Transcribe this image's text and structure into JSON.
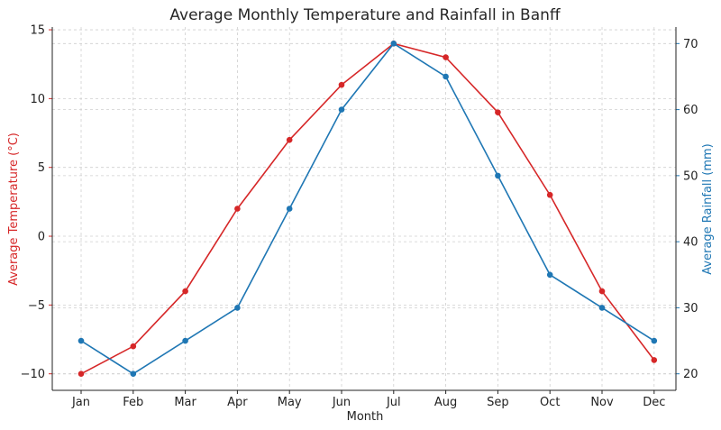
{
  "chart_data": {
    "type": "line",
    "title": "Average Monthly Temperature and Rainfall in Banff",
    "xlabel": "Month",
    "categories": [
      "Jan",
      "Feb",
      "Mar",
      "Apr",
      "May",
      "Jun",
      "Jul",
      "Aug",
      "Sep",
      "Oct",
      "Nov",
      "Dec"
    ],
    "grid": true,
    "series": [
      {
        "name": "Average Temperature (°C)",
        "axis": "left",
        "color": "#d62728",
        "values": [
          -10,
          -8,
          -4,
          2,
          7,
          11,
          14,
          13,
          9,
          3,
          -4,
          -9
        ]
      },
      {
        "name": "Average Rainfall (mm)",
        "axis": "right",
        "color": "#1f77b4",
        "values": [
          25,
          20,
          25,
          30,
          45,
          60,
          70,
          65,
          50,
          35,
          30,
          25
        ]
      }
    ],
    "y_left": {
      "label": "Average Temperature (°C)",
      "range": [
        -11.2,
        15.2
      ],
      "ticks": [
        -10,
        -5,
        0,
        5,
        10,
        15
      ],
      "tick_labels": [
        "−10",
        "−5",
        "0",
        "5",
        "10",
        "15"
      ]
    },
    "y_right": {
      "label": "Average Rainfall (mm)",
      "range": [
        17.5,
        72.5
      ],
      "ticks": [
        20,
        30,
        40,
        50,
        60,
        70
      ],
      "tick_labels": [
        "20",
        "30",
        "40",
        "50",
        "60",
        "70"
      ]
    }
  }
}
